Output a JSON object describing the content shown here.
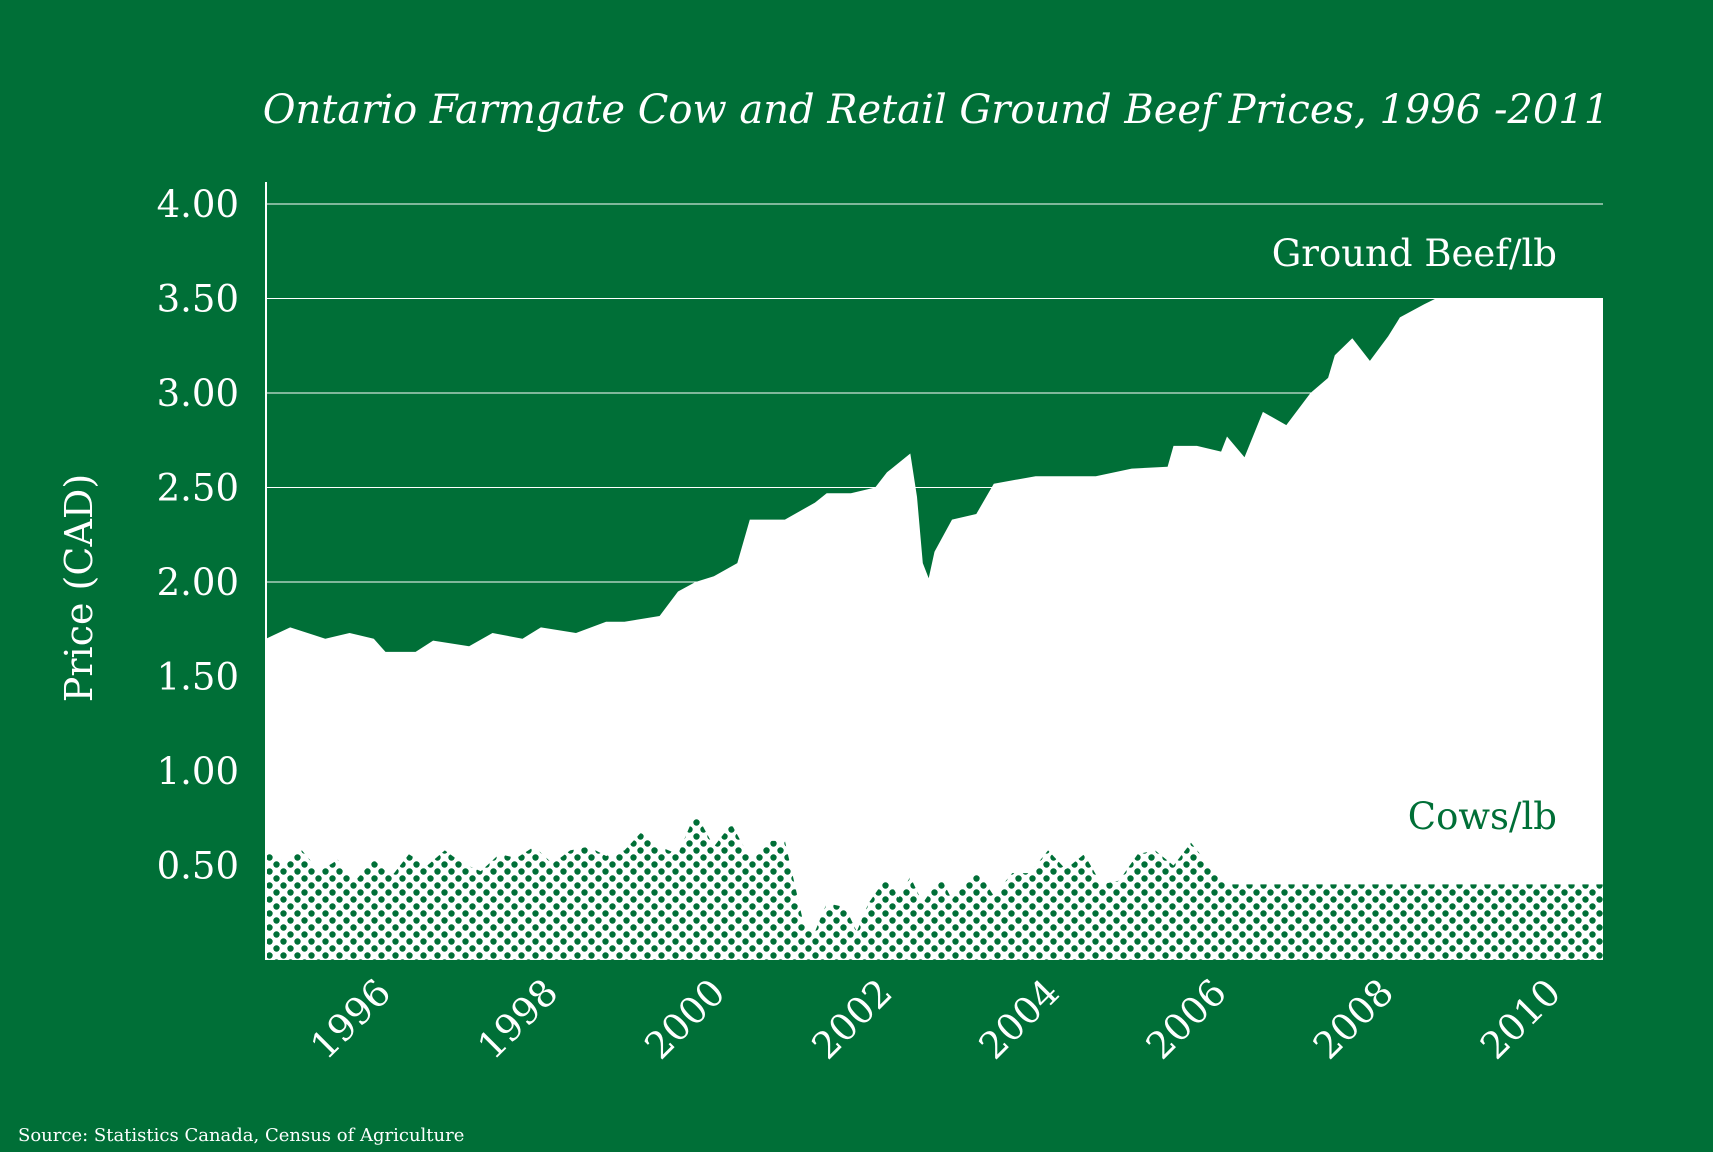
{
  "colors": {
    "background": "#006f37",
    "beef_fill": "#ffffff",
    "cows_fill": "#006f37",
    "gridline": "#ffffff"
  },
  "source": "Source: Statistics Canada, Census of Agriculture",
  "chart_data": {
    "type": "area",
    "title": "Ontario Farmgate Cow and Retail Ground Beef Prices, 1996 -2011",
    "ylabel": "Price (CAD)",
    "xlabel": "",
    "ylim": [
      0,
      4.0
    ],
    "xlim": [
      1995.0,
      2011.0
    ],
    "yticks": [
      0.5,
      1.0,
      1.5,
      2.0,
      2.5,
      3.0,
      3.5,
      4.0
    ],
    "ytick_labels": [
      "0.50",
      "1.00",
      "1.50",
      "2.00",
      "2.50",
      "3.00",
      "3.50",
      "4.00"
    ],
    "xticks": [
      1996,
      1998,
      2000,
      2002,
      2004,
      2006,
      2008,
      2010
    ],
    "xtick_labels": [
      "1996",
      "1998",
      "2000",
      "2002",
      "2004",
      "2006",
      "2008",
      "2010"
    ],
    "grid": "horizontal",
    "series": [
      {
        "name": "Ground Beef/lb",
        "label_placement": "top-right",
        "x": [
          1995.0,
          1995.29,
          1995.71,
          1996.0,
          1996.29,
          1996.43,
          1996.79,
          1997.0,
          1997.43,
          1997.71,
          1998.07,
          1998.29,
          1998.71,
          1999.07,
          1999.29,
          1999.71,
          1999.93,
          2000.14,
          2000.36,
          2000.64,
          2000.79,
          2001.21,
          2001.57,
          2001.71,
          2002.0,
          2002.29,
          2002.43,
          2002.71,
          2002.79,
          2002.86,
          2002.93,
          2003.0,
          2003.21,
          2003.5,
          2003.71,
          2004.21,
          2004.5,
          2004.93,
          2005.36,
          2005.79,
          2005.86,
          2006.14,
          2006.43,
          2006.5,
          2006.71,
          2006.93,
          2007.21,
          2007.5,
          2007.71,
          2007.79,
          2008.0,
          2008.21,
          2008.43,
          2008.57,
          2008.86,
          2009.0,
          2009.36,
          2009.71,
          2010.21,
          2010.57,
          2011.0
        ],
        "values": [
          1.7,
          1.76,
          1.7,
          1.73,
          1.7,
          1.63,
          1.63,
          1.69,
          1.66,
          1.73,
          1.7,
          1.76,
          1.73,
          1.79,
          1.79,
          1.82,
          1.95,
          2.0,
          2.03,
          2.1,
          2.33,
          2.33,
          2.42,
          2.47,
          2.47,
          2.5,
          2.58,
          2.68,
          2.45,
          2.1,
          2.02,
          2.16,
          2.33,
          2.36,
          2.52,
          2.56,
          2.56,
          2.56,
          2.6,
          2.61,
          2.72,
          2.72,
          2.69,
          2.77,
          2.66,
          2.9,
          2.83,
          3.0,
          3.08,
          3.2,
          3.29,
          3.17,
          3.3,
          3.4,
          3.47,
          3.5,
          3.5,
          3.5,
          3.5,
          3.5,
          3.5
        ]
      },
      {
        "name": "Cows/lb",
        "label_placement": "bottom-right",
        "x": [
          1995.0,
          1995.21,
          1995.43,
          1995.64,
          1995.86,
          1996.07,
          1996.29,
          1996.5,
          1996.71,
          1996.93,
          1997.14,
          1997.36,
          1997.57,
          1997.79,
          1998.0,
          1998.21,
          1998.43,
          1998.64,
          1998.86,
          1999.07,
          1999.29,
          1999.5,
          1999.71,
          1999.93,
          2000.14,
          2000.36,
          2000.57,
          2000.79,
          2001.0,
          2001.21,
          2001.43,
          2001.57,
          2001.71,
          2001.93,
          2002.07,
          2002.21,
          2002.43,
          2002.57,
          2002.71,
          2002.86,
          2003.07,
          2003.21,
          2003.5,
          2003.71,
          2003.93,
          2004.14,
          2004.36,
          2004.57,
          2004.79,
          2005.0,
          2005.21,
          2005.43,
          2005.64,
          2005.86,
          2006.07,
          2006.29,
          2006.5,
          2006.71,
          2006.93,
          2007.14,
          2007.36,
          2007.57,
          2007.79,
          2008.0,
          2008.21,
          2008.43,
          2008.64,
          2008.86,
          2009.07,
          2009.29,
          2009.5,
          2009.71,
          2009.93,
          2010.14,
          2010.36,
          2010.57,
          2010.79,
          2011.0
        ],
        "values": [
          0.59,
          0.52,
          0.58,
          0.47,
          0.53,
          0.42,
          0.53,
          0.44,
          0.56,
          0.5,
          0.58,
          0.51,
          0.47,
          0.56,
          0.54,
          0.6,
          0.51,
          0.58,
          0.6,
          0.55,
          0.58,
          0.68,
          0.6,
          0.56,
          0.78,
          0.6,
          0.72,
          0.54,
          0.63,
          0.63,
          0.2,
          0.15,
          0.3,
          0.28,
          0.15,
          0.3,
          0.44,
          0.33,
          0.44,
          0.3,
          0.44,
          0.32,
          0.48,
          0.34,
          0.46,
          0.46,
          0.58,
          0.48,
          0.56,
          0.4,
          0.42,
          0.56,
          0.58,
          0.5,
          0.62,
          0.5,
          0.4,
          0.4,
          0.4,
          0.4,
          0.4,
          0.4,
          0.4,
          0.4,
          0.4,
          0.4,
          0.4,
          0.4,
          0.4,
          0.4,
          0.4,
          0.4,
          0.4,
          0.4,
          0.4,
          0.4,
          0.4,
          0.4
        ]
      }
    ]
  }
}
